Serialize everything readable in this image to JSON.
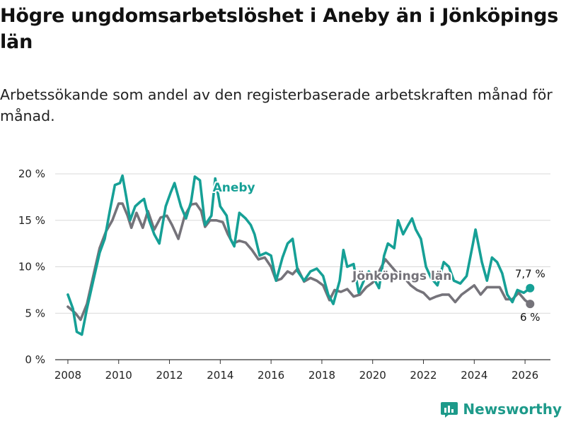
{
  "header": {
    "title": "Högre ungdomsarbetslöshet i Aneby än i Jönköpings län",
    "subtitle": "Arbetssökande som andel av den registerbaserade arbetskraften månad för månad."
  },
  "brand": {
    "name": "Newsworthy",
    "logo_icon": "bar-chart-logo-icon"
  },
  "colors": {
    "aneby": "#16a096",
    "lan": "#75737a",
    "grid": "#d9d9d9",
    "axis": "#333333"
  },
  "chart_data": {
    "type": "line",
    "title": "Högre ungdomsarbetslöshet i Aneby än i Jönköpings län",
    "subtitle": "Arbetssökande som andel av den registerbaserade arbetskraften månad för månad.",
    "xlabel": "",
    "ylabel": "",
    "xlim": [
      2007.5,
      2027.0
    ],
    "ylim": [
      0,
      20
    ],
    "x_ticks": [
      2008,
      2010,
      2012,
      2014,
      2016,
      2018,
      2020,
      2022,
      2024,
      2026
    ],
    "x_tick_labels": [
      "2008",
      "2010",
      "2012",
      "2014",
      "2016",
      "2018",
      "2020",
      "2022",
      "2024",
      "2026"
    ],
    "y_ticks": [
      0,
      5,
      10,
      15,
      20
    ],
    "y_tick_labels": [
      "0 %",
      "5 %",
      "10 %",
      "15 %",
      "20 %"
    ],
    "grid": true,
    "series": [
      {
        "name": "Jönköpings län",
        "label": "Jönköpings län",
        "end_label": "6 %",
        "points": [
          [
            2008.0,
            5.7
          ],
          [
            2008.3,
            5.0
          ],
          [
            2008.5,
            4.3
          ],
          [
            2008.75,
            6.0
          ],
          [
            2009.0,
            9.0
          ],
          [
            2009.25,
            12.0
          ],
          [
            2009.5,
            13.8
          ],
          [
            2009.75,
            15.0
          ],
          [
            2010.0,
            16.8
          ],
          [
            2010.15,
            16.8
          ],
          [
            2010.35,
            15.5
          ],
          [
            2010.5,
            14.2
          ],
          [
            2010.7,
            15.8
          ],
          [
            2010.95,
            14.2
          ],
          [
            2011.15,
            16.0
          ],
          [
            2011.4,
            14.0
          ],
          [
            2011.65,
            15.3
          ],
          [
            2011.9,
            15.5
          ],
          [
            2012.1,
            14.5
          ],
          [
            2012.35,
            13.0
          ],
          [
            2012.6,
            15.5
          ],
          [
            2012.85,
            16.7
          ],
          [
            2013.05,
            16.8
          ],
          [
            2013.25,
            16.0
          ],
          [
            2013.4,
            14.3
          ],
          [
            2013.6,
            15.0
          ],
          [
            2013.85,
            15.0
          ],
          [
            2014.1,
            14.8
          ],
          [
            2014.3,
            13.5
          ],
          [
            2014.5,
            12.5
          ],
          [
            2014.75,
            12.8
          ],
          [
            2015.0,
            12.6
          ],
          [
            2015.25,
            11.8
          ],
          [
            2015.5,
            10.8
          ],
          [
            2015.75,
            11.0
          ],
          [
            2016.0,
            10.0
          ],
          [
            2016.2,
            8.5
          ],
          [
            2016.4,
            8.7
          ],
          [
            2016.65,
            9.5
          ],
          [
            2016.85,
            9.2
          ],
          [
            2017.05,
            9.8
          ],
          [
            2017.3,
            8.4
          ],
          [
            2017.55,
            8.8
          ],
          [
            2017.8,
            8.5
          ],
          [
            2018.05,
            8.0
          ],
          [
            2018.3,
            6.4
          ],
          [
            2018.5,
            7.5
          ],
          [
            2018.75,
            7.3
          ],
          [
            2019.0,
            7.6
          ],
          [
            2019.25,
            6.8
          ],
          [
            2019.5,
            7.0
          ],
          [
            2019.75,
            7.8
          ],
          [
            2020.0,
            8.3
          ],
          [
            2020.25,
            9.5
          ],
          [
            2020.5,
            10.8
          ],
          [
            2020.75,
            10.0
          ],
          [
            2021.0,
            9.2
          ],
          [
            2021.25,
            8.8
          ],
          [
            2021.5,
            8.0
          ],
          [
            2021.75,
            7.5
          ],
          [
            2022.0,
            7.2
          ],
          [
            2022.25,
            6.5
          ],
          [
            2022.5,
            6.8
          ],
          [
            2022.75,
            7.0
          ],
          [
            2023.0,
            7.0
          ],
          [
            2023.25,
            6.2
          ],
          [
            2023.5,
            7.0
          ],
          [
            2023.75,
            7.5
          ],
          [
            2024.0,
            8.0
          ],
          [
            2024.25,
            7.0
          ],
          [
            2024.5,
            7.8
          ],
          [
            2024.75,
            7.8
          ],
          [
            2025.0,
            7.8
          ],
          [
            2025.25,
            6.5
          ],
          [
            2025.5,
            6.5
          ],
          [
            2025.75,
            7.2
          ],
          [
            2026.0,
            6.4
          ],
          [
            2026.2,
            6.0
          ]
        ]
      },
      {
        "name": "Aneby",
        "label": "Aneby",
        "end_label": "7,7 %",
        "points": [
          [
            2008.0,
            7.0
          ],
          [
            2008.2,
            5.5
          ],
          [
            2008.35,
            3.0
          ],
          [
            2008.55,
            2.7
          ],
          [
            2008.75,
            5.5
          ],
          [
            2009.0,
            8.5
          ],
          [
            2009.25,
            11.5
          ],
          [
            2009.45,
            13.0
          ],
          [
            2009.65,
            16.0
          ],
          [
            2009.85,
            18.8
          ],
          [
            2010.05,
            19.0
          ],
          [
            2010.15,
            19.8
          ],
          [
            2010.3,
            17.5
          ],
          [
            2010.45,
            15.0
          ],
          [
            2010.65,
            16.5
          ],
          [
            2010.85,
            17.0
          ],
          [
            2011.0,
            17.3
          ],
          [
            2011.2,
            15.0
          ],
          [
            2011.4,
            13.5
          ],
          [
            2011.6,
            12.5
          ],
          [
            2011.85,
            16.5
          ],
          [
            2012.05,
            18.0
          ],
          [
            2012.2,
            19.0
          ],
          [
            2012.45,
            16.5
          ],
          [
            2012.65,
            15.2
          ],
          [
            2012.85,
            17.0
          ],
          [
            2013.0,
            19.7
          ],
          [
            2013.2,
            19.3
          ],
          [
            2013.4,
            14.5
          ],
          [
            2013.65,
            15.5
          ],
          [
            2013.8,
            19.5
          ],
          [
            2014.0,
            16.5
          ],
          [
            2014.25,
            15.5
          ],
          [
            2014.4,
            13.0
          ],
          [
            2014.55,
            12.2
          ],
          [
            2014.75,
            15.8
          ],
          [
            2015.0,
            15.2
          ],
          [
            2015.2,
            14.5
          ],
          [
            2015.35,
            13.5
          ],
          [
            2015.55,
            11.2
          ],
          [
            2015.8,
            11.5
          ],
          [
            2016.0,
            11.2
          ],
          [
            2016.2,
            8.5
          ],
          [
            2016.45,
            11.0
          ],
          [
            2016.65,
            12.5
          ],
          [
            2016.85,
            13.0
          ],
          [
            2017.05,
            9.5
          ],
          [
            2017.3,
            8.5
          ],
          [
            2017.55,
            9.5
          ],
          [
            2017.8,
            9.8
          ],
          [
            2018.05,
            9.0
          ],
          [
            2018.25,
            7.0
          ],
          [
            2018.45,
            6.0
          ],
          [
            2018.7,
            8.5
          ],
          [
            2018.85,
            11.8
          ],
          [
            2019.0,
            10.0
          ],
          [
            2019.25,
            10.3
          ],
          [
            2019.45,
            7.2
          ],
          [
            2019.65,
            8.5
          ],
          [
            2019.85,
            9.5
          ],
          [
            2020.0,
            9.0
          ],
          [
            2020.25,
            7.7
          ],
          [
            2020.45,
            11.2
          ],
          [
            2020.6,
            12.5
          ],
          [
            2020.85,
            12.0
          ],
          [
            2021.0,
            15.0
          ],
          [
            2021.2,
            13.5
          ],
          [
            2021.4,
            14.5
          ],
          [
            2021.55,
            15.2
          ],
          [
            2021.7,
            14.0
          ],
          [
            2021.9,
            13.0
          ],
          [
            2022.1,
            10.0
          ],
          [
            2022.3,
            8.8
          ],
          [
            2022.55,
            8.0
          ],
          [
            2022.8,
            10.5
          ],
          [
            2023.0,
            10.0
          ],
          [
            2023.2,
            8.5
          ],
          [
            2023.45,
            8.2
          ],
          [
            2023.7,
            9.0
          ],
          [
            2023.95,
            12.5
          ],
          [
            2024.05,
            14.0
          ],
          [
            2024.3,
            10.5
          ],
          [
            2024.5,
            8.5
          ],
          [
            2024.7,
            11.0
          ],
          [
            2024.9,
            10.5
          ],
          [
            2025.1,
            9.3
          ],
          [
            2025.3,
            7.0
          ],
          [
            2025.5,
            6.2
          ],
          [
            2025.7,
            7.5
          ],
          [
            2025.95,
            7.2
          ],
          [
            2026.2,
            7.7
          ]
        ]
      }
    ],
    "annotations": [
      {
        "series": "Aneby",
        "text": "Aneby",
        "at": [
          2013.7,
          18.1
        ]
      },
      {
        "series": "Jönköpings län",
        "text": "Jönköpings län",
        "at": [
          2019.2,
          8.6
        ]
      }
    ]
  }
}
